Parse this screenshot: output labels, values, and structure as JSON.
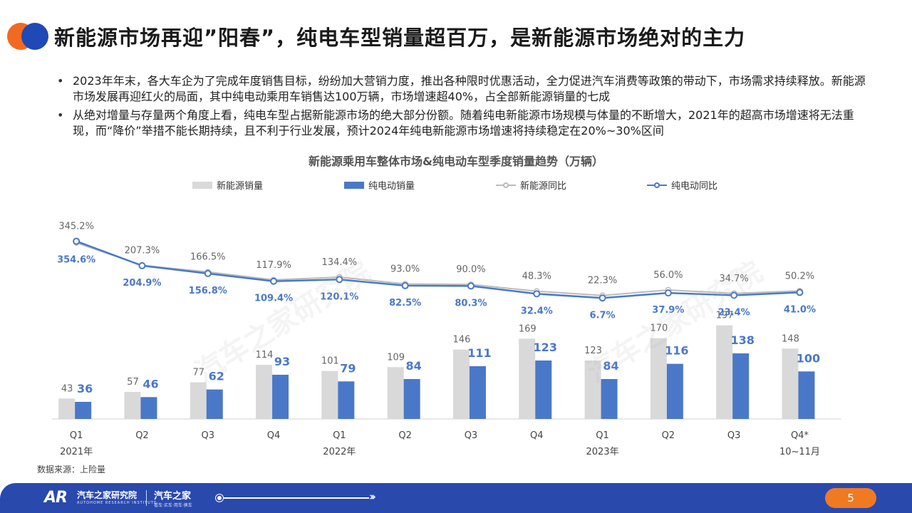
{
  "title": "新能源市场再迎”阳春”，纯电车型销量超百万，是新能源市场绝对的主力",
  "bullets": [
    "2023年年末，各大车企为了完成年度销售目标，纷纷加大营销力度，推出各种限时优惠活动，全力促进汽车消费等政策的带动下，市场需求持续释放。新能源市场发展再迎红火的局面，其中纯电动乘用车销售达100万辆，市场增速超40%，占全部新能源销量的七成",
    "从绝对增量与存量两个角度上看，纯电车型占据新能源市场的绝大部分份额。随着纯电新能源市场规模与体量的不断增大，2021年的超高市场增速将无法重现，而“降价”举措不能长期持续，且不利于行业发展，预计2024年纯电新能源市场增速将持续稳定在20%~30%区间"
  ],
  "watermark": "汽车之家研究院",
  "colors": {
    "nev_bar": "#d9d9d9",
    "bev_bar": "#4a78c8",
    "nev_line": "#bbbbbb",
    "bev_line": "#4a78c8"
  },
  "chart_data": {
    "type": "bar+line",
    "title": "新能源乘用车整体市场&纯电动车型季度销量趋势（万辆）",
    "categories": [
      "Q1",
      "Q2",
      "Q3",
      "Q4",
      "Q1",
      "Q2",
      "Q3",
      "Q4",
      "Q1",
      "Q2",
      "Q3",
      "Q4*"
    ],
    "category_sublabels": [
      "2021年",
      "",
      "",
      "",
      "2022年",
      "",
      "",
      "",
      "2023年",
      "",
      "",
      "10~11月"
    ],
    "series": [
      {
        "name": "新能源销量",
        "kind": "bar",
        "values": [
          43,
          57,
          77,
          114,
          101,
          109,
          146,
          169,
          123,
          170,
          197,
          148
        ]
      },
      {
        "name": "纯电动销量",
        "kind": "bar",
        "values": [
          36,
          46,
          62,
          93,
          79,
          84,
          111,
          123,
          84,
          116,
          138,
          100
        ]
      },
      {
        "name": "新能源同比",
        "kind": "line",
        "values": [
          345.2,
          207.3,
          166.5,
          117.9,
          134.4,
          93.0,
          90.0,
          48.3,
          22.3,
          56.0,
          34.7,
          50.2
        ],
        "labels": [
          "345.2%",
          "207.3%",
          "166.5%",
          "117.9%",
          "134.4%",
          "93.0%",
          "90.0%",
          "48.3%",
          "22.3%",
          "56.0%",
          "34.7%",
          "50.2%"
        ]
      },
      {
        "name": "纯电动同比",
        "kind": "line",
        "values": [
          354.6,
          204.9,
          156.8,
          109.4,
          120.1,
          82.5,
          80.3,
          32.4,
          6.7,
          37.9,
          23.4,
          41.0
        ],
        "labels": [
          "354.6%",
          "204.9%",
          "156.8%",
          "109.4%",
          "120.1%",
          "82.5%",
          "80.3%",
          "32.4%",
          "6.7%",
          "37.9%",
          "23.4%",
          "41.0%"
        ]
      }
    ],
    "legend_position": "top",
    "grid": false
  },
  "source": "数据来源：上险量",
  "footer": {
    "logo_text": "AR",
    "org_name": "汽车之家研究院",
    "org_sub": "AUTOHOME RESEARCH INSTITUTE",
    "brand_name": "汽车之家",
    "brand_sub": "看车·买车·用车·换车",
    "arrow": "›››"
  },
  "page_number": "5"
}
